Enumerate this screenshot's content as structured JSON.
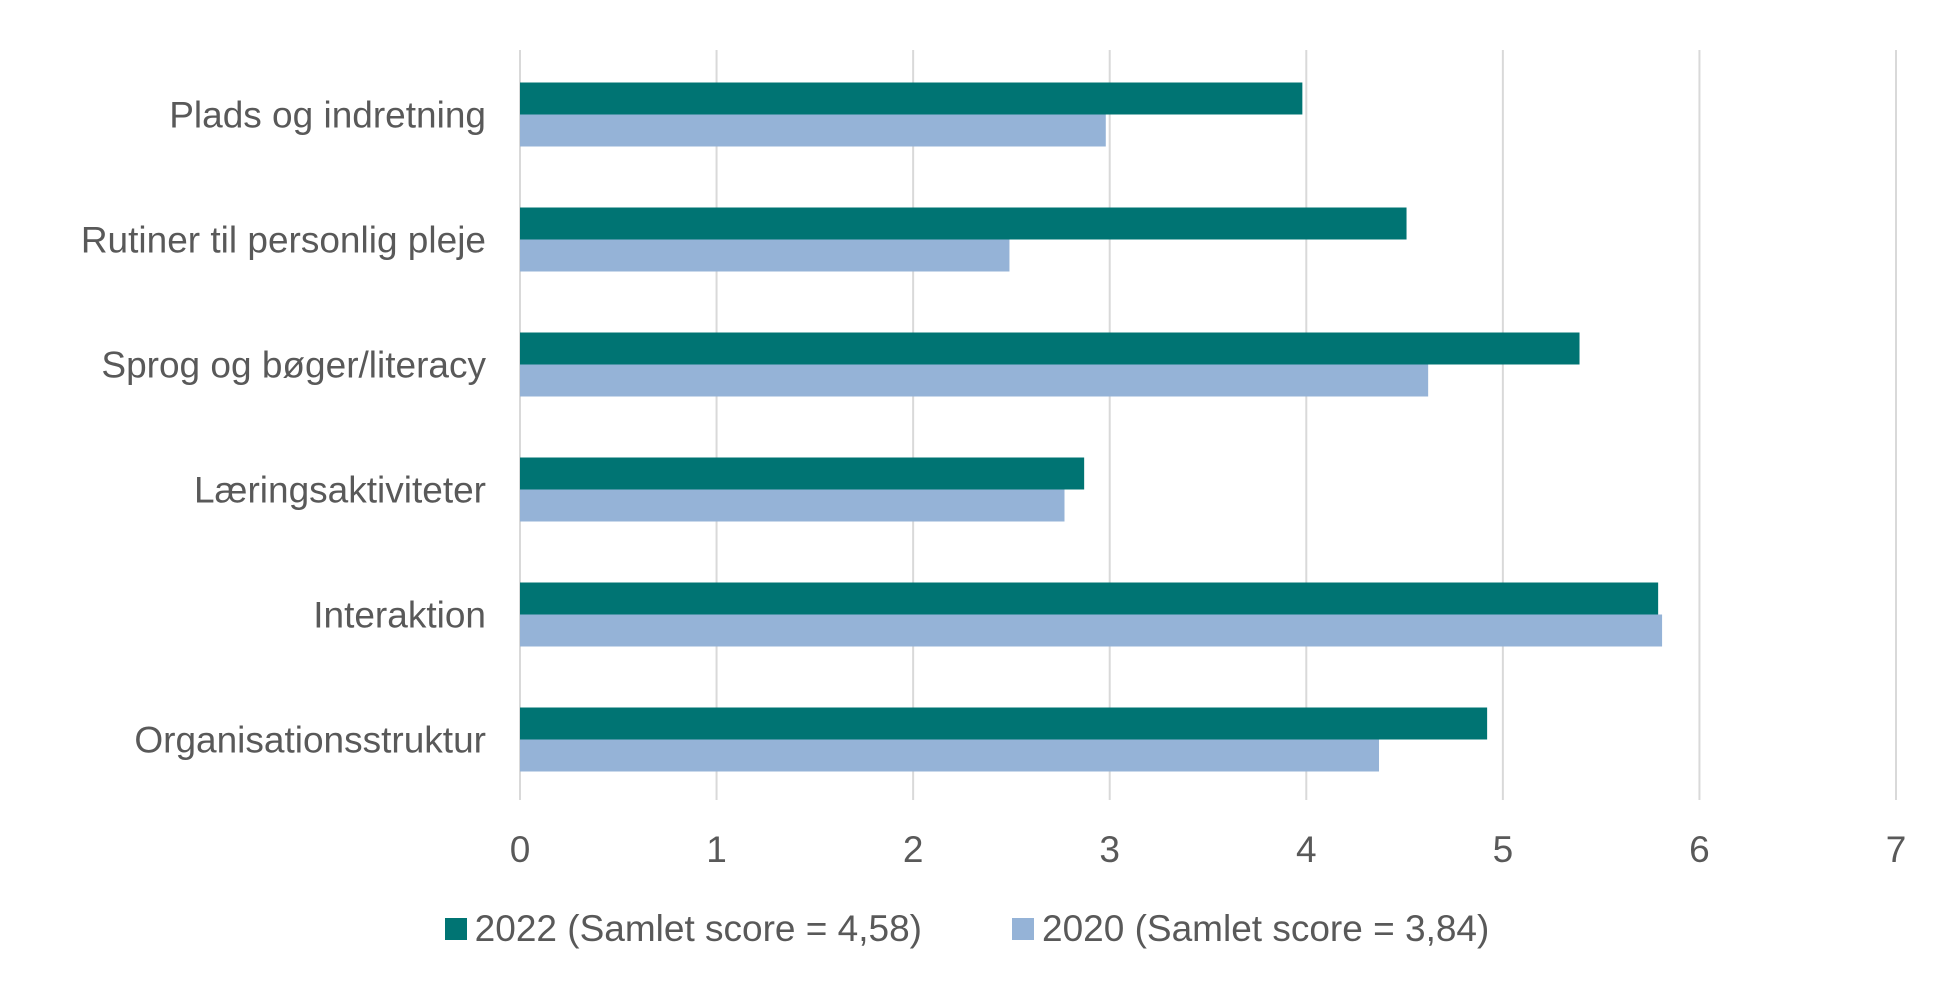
{
  "chart_data": {
    "type": "bar",
    "orientation": "horizontal",
    "categories": [
      "Plads og indretning",
      "Rutiner til personlig pleje",
      "Sprog og bøger/literacy",
      "Læringsaktiviteter",
      "Interaktion",
      "Organisationsstruktur"
    ],
    "series": [
      {
        "name": "2022 (Samlet score = 4,58)",
        "color": "#007473",
        "values": [
          3.98,
          4.51,
          5.39,
          2.87,
          5.79,
          4.92
        ]
      },
      {
        "name": "2020 (Samlet score = 3,84)",
        "color": "#95B3D7",
        "values": [
          2.98,
          2.49,
          4.62,
          2.77,
          5.81,
          4.37
        ]
      }
    ],
    "xlim": [
      0,
      7
    ],
    "xticks": [
      "0",
      "1",
      "2",
      "3",
      "4",
      "5",
      "6",
      "7"
    ],
    "grid": true,
    "legend_position": "bottom"
  }
}
